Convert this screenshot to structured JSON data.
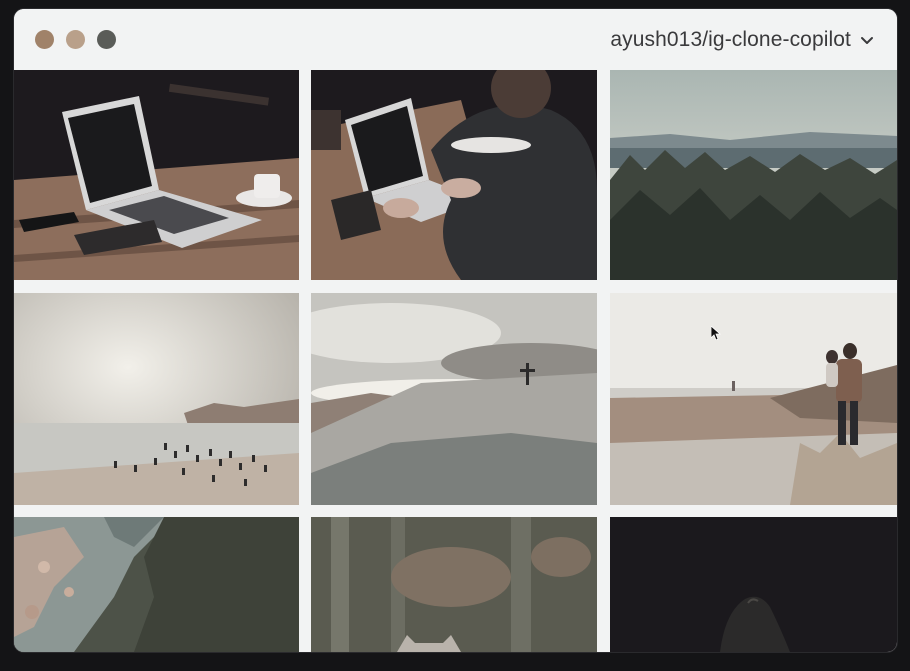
{
  "window": {
    "traffic_lights": [
      {
        "name": "close",
        "color": "#a08269"
      },
      {
        "name": "minimize",
        "color": "#b9a08a"
      },
      {
        "name": "maximize",
        "color": "#5a5c58"
      }
    ],
    "repo_label": "ayush013/ig-clone-copilot",
    "repo_icon": "chevron-down-icon"
  },
  "grid": {
    "photos": [
      {
        "name": "laptop-on-table"
      },
      {
        "name": "person-typing-laptop"
      },
      {
        "name": "forest-mountain-view"
      },
      {
        "name": "crowded-beach"
      },
      {
        "name": "hill-with-cross"
      },
      {
        "name": "man-carrying-child"
      },
      {
        "name": "rocky-coastline"
      },
      {
        "name": "cat-in-foliage"
      },
      {
        "name": "dark-horse"
      }
    ]
  }
}
